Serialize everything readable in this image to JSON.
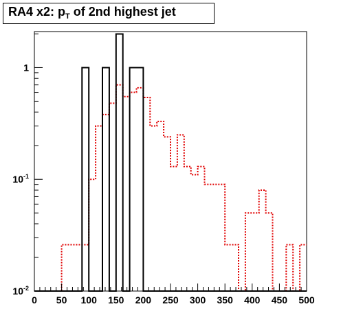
{
  "title_prefix": "RA4 x2: p",
  "title_sub": "T",
  "title_suffix": " of 2nd highest jet",
  "chart_data": {
    "type": "histogram",
    "xlim": [
      0,
      500
    ],
    "ylim": [
      0.01,
      2.1
    ],
    "yscale": "log",
    "grid": false,
    "legend": "none",
    "x_ticks": [
      0,
      50,
      100,
      150,
      200,
      250,
      300,
      350,
      400,
      450,
      500
    ],
    "y_ticks": [
      {
        "value": 1,
        "label": "1",
        "sup": ""
      },
      {
        "value": 0.1,
        "label": "10",
        "sup": "-1"
      },
      {
        "value": 0.01,
        "label": "10",
        "sup": "-2"
      }
    ],
    "bin_width": 12.5,
    "bin_start": 0,
    "series": [
      {
        "color": "#000000",
        "style": "solid",
        "values": [
          0,
          0,
          0,
          0,
          0,
          0,
          0,
          1,
          0,
          0,
          1,
          0,
          2,
          0,
          1,
          1,
          0,
          0,
          0,
          0,
          0,
          0,
          0,
          0,
          0,
          0,
          0,
          0,
          0,
          0,
          0,
          0,
          0,
          0,
          0,
          0,
          0,
          0,
          0,
          0
        ]
      },
      {
        "color": "#e00000",
        "style": "dotted",
        "values": [
          0,
          0,
          0,
          0,
          0.026,
          0.026,
          0.026,
          0.026,
          0.1,
          0.3,
          0.38,
          0.48,
          0.7,
          0.55,
          0.6,
          0.66,
          0.54,
          0.3,
          0.33,
          0.24,
          0.13,
          0.25,
          0.13,
          0.11,
          0.13,
          0.09,
          0.09,
          0.09,
          0.026,
          0.026,
          0,
          0.05,
          0.05,
          0.08,
          0.05,
          0,
          0,
          0.026,
          0,
          0.026
        ]
      }
    ]
  }
}
